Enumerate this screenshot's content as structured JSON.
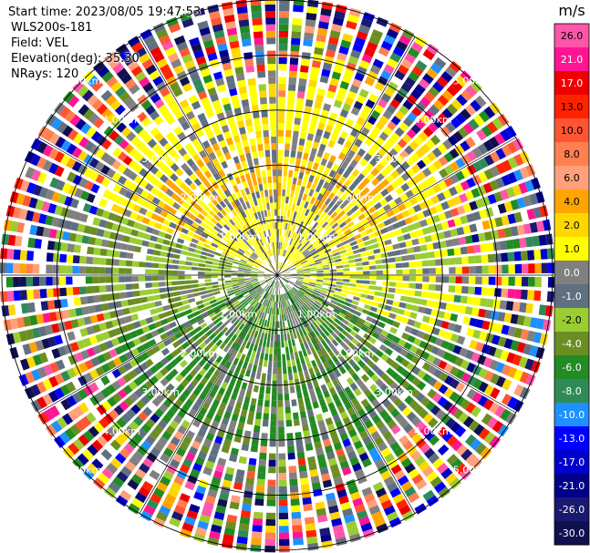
{
  "header": {
    "start_time": "Start time: 2023/08/05 19:47:53",
    "instrument": "WLS200s-181",
    "field": "Field: VEL",
    "elevation": "Elevation(deg): 35.30",
    "nrays": "NRays: 120"
  },
  "chart_data": {
    "type": "heatmap",
    "projection": "polar-ppi",
    "field": "VEL",
    "nrays": 120,
    "range_rings_km": [
      1.0,
      2.0,
      3.0,
      4.0,
      5.0
    ],
    "ring_labels": [
      "1.00km",
      "2.00km",
      "3.00km",
      "4.00km",
      "5.00km"
    ],
    "max_range_km": 5.0,
    "colorbar": {
      "unit": "m/s",
      "ticks": [
        "26.0",
        "21.0",
        "17.0",
        "13.0",
        "10.0",
        "8.0",
        "6.0",
        "4.0",
        "2.0",
        "1.0",
        "0.0",
        "-1.0",
        "-2.0",
        "-4.0",
        "-6.0",
        "-8.0",
        "-10.0",
        "-13.0",
        "-17.0",
        "-21.0",
        "-26.0",
        "-30.0"
      ],
      "colors": [
        "#ff55aa",
        "#ff1493",
        "#ee0000",
        "#ff2200",
        "#ff5533",
        "#ff7f50",
        "#ffa07a",
        "#ffa500",
        "#ffd700",
        "#ffff00",
        "#808080",
        "#607080",
        "#9acd32",
        "#6b8e23",
        "#228b22",
        "#2e8b57",
        "#1e90ff",
        "#0000ff",
        "#0000cd",
        "#00008b",
        "#191970",
        "#101050"
      ]
    }
  }
}
